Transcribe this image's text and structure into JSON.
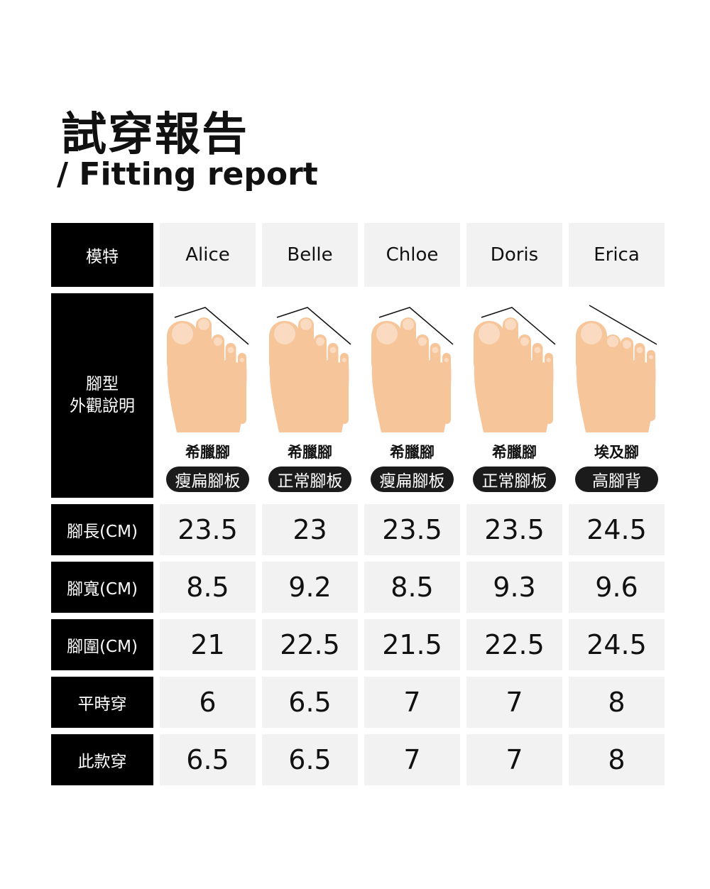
{
  "title": "試穿報告",
  "subtitle": "/ Fitting report",
  "labels": {
    "model": "模特",
    "foot_type": "腳型\n外觀說明",
    "length": "腳長(CM)",
    "width": "腳寬(CM)",
    "girth": "腳圍(CM)",
    "usual": "平時穿",
    "this": "此款穿"
  },
  "models": [
    {
      "name": "Alice",
      "shape": "希臘腳",
      "desc": "瘦扁腳板",
      "length": "23.5",
      "width": "8.5",
      "girth": "21",
      "usual": "6",
      "this": "6.5"
    },
    {
      "name": "Belle",
      "shape": "希臘腳",
      "desc": "正常腳板",
      "length": "23",
      "width": "9.2",
      "girth": "22.5",
      "usual": "6.5",
      "this": "6.5"
    },
    {
      "name": "Chloe",
      "shape": "希臘腳",
      "desc": "瘦扁腳板",
      "length": "23.5",
      "width": "8.5",
      "girth": "21.5",
      "usual": "7",
      "this": "7"
    },
    {
      "name": "Doris",
      "shape": "希臘腳",
      "desc": "正常腳板",
      "length": "23.5",
      "width": "9.3",
      "girth": "22.5",
      "usual": "7",
      "this": "7"
    },
    {
      "name": "Erica",
      "shape": "埃及腳",
      "desc": "高腳背",
      "length": "24.5",
      "width": "9.6",
      "girth": "24.5",
      "usual": "8",
      "this": "8"
    }
  ],
  "colors": {
    "skin": "#f7c59a",
    "label_bg": "#000000",
    "cell_bg": "#f2f2f2"
  }
}
